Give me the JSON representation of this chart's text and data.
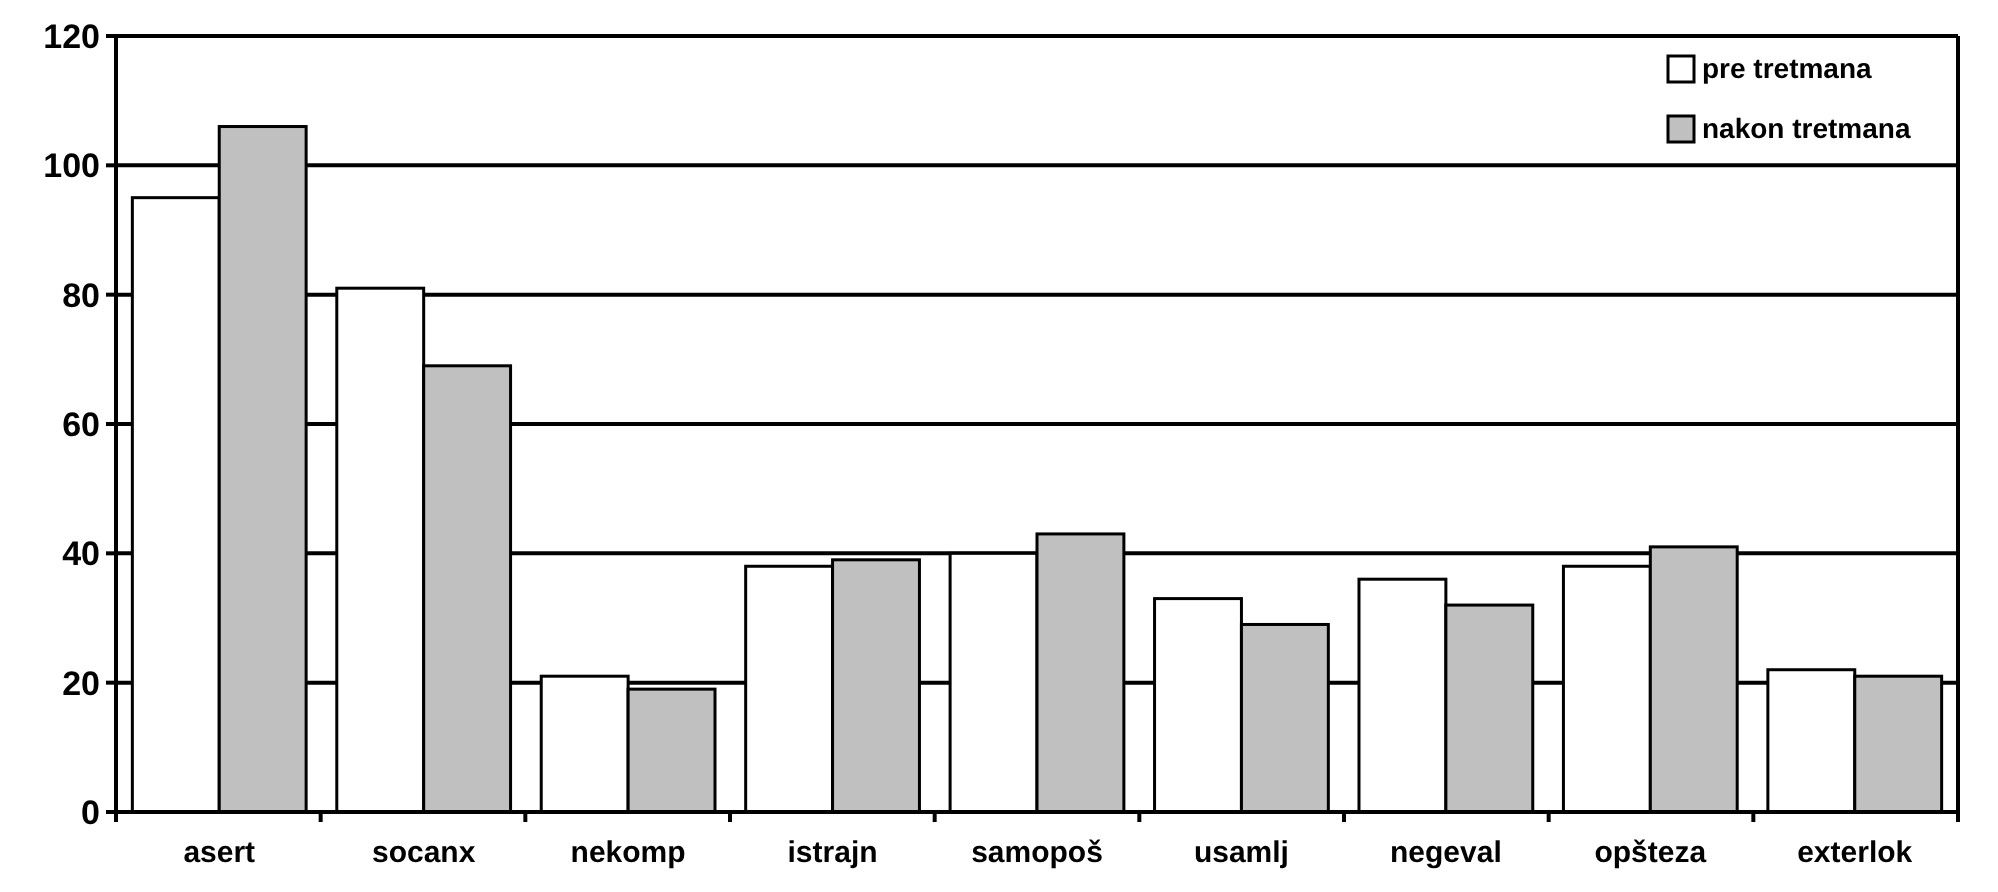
{
  "chart_data": {
    "type": "bar",
    "categories": [
      "asert",
      "socanx",
      "nekomp",
      "istrajn",
      "samopoš",
      "usamlj",
      "negeval",
      "opšteza",
      "exterlok"
    ],
    "series": [
      {
        "name": "pre tretmana",
        "color": "#ffffff",
        "values": [
          95,
          81,
          21,
          38,
          40,
          33,
          36,
          38,
          22
        ]
      },
      {
        "name": "nakon tretmana",
        "color": "#c0c0c0",
        "values": [
          106,
          69,
          19,
          39,
          43,
          29,
          32,
          41,
          21
        ]
      }
    ],
    "ylim": [
      0,
      120
    ],
    "yticks": [
      0,
      20,
      40,
      60,
      80,
      100,
      120
    ],
    "grid": "y",
    "legend": "top right"
  }
}
